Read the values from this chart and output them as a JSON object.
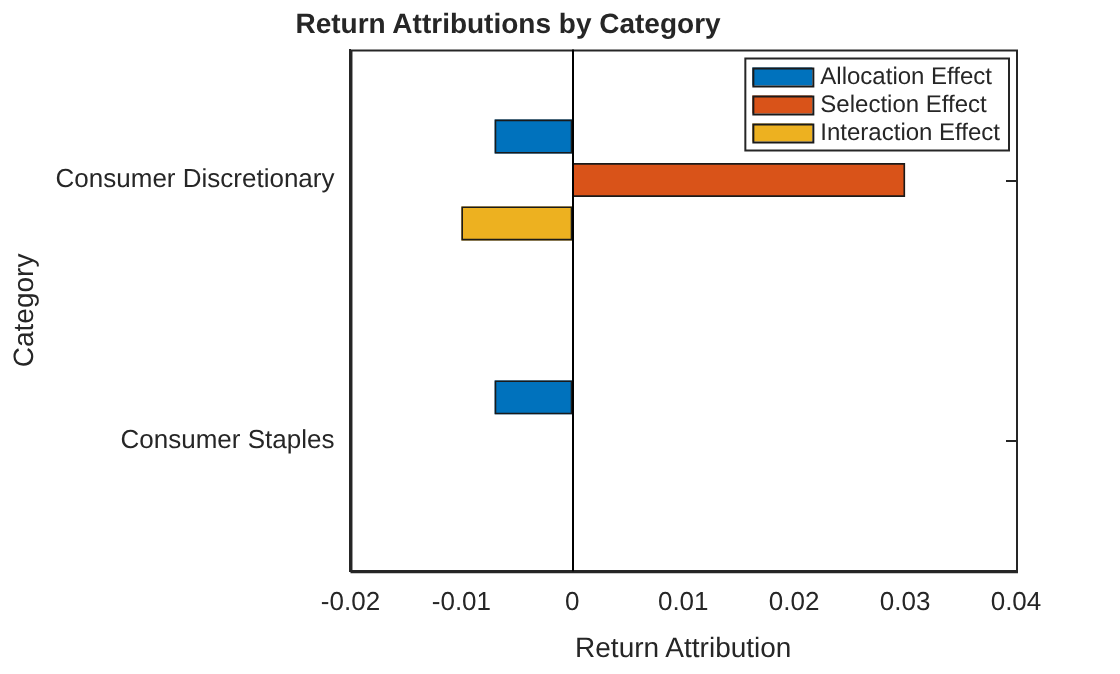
{
  "chart_data": {
    "type": "bar",
    "orientation": "horizontal",
    "title": "Return Attributions by Category",
    "xlabel": "Return Attribution",
    "ylabel": "Category",
    "categories": [
      "Consumer Discretionary",
      "Consumer Staples"
    ],
    "series": [
      {
        "name": "Allocation Effect",
        "color": "#0072bd",
        "values": [
          -0.007,
          -0.007
        ]
      },
      {
        "name": "Selection Effect",
        "color": "#d95319",
        "values": [
          0.03,
          null
        ]
      },
      {
        "name": "Interaction Effect",
        "color": "#edb120",
        "values": [
          -0.01,
          null
        ]
      }
    ],
    "xlim": [
      -0.02,
      0.04
    ],
    "xticks": [
      -0.02,
      -0.01,
      0,
      0.01,
      0.02,
      0.03,
      0.04
    ],
    "grid": false,
    "ref_lines": [
      {
        "axis": "x",
        "value": 0,
        "color": "#000000"
      }
    ],
    "legend": "top right"
  }
}
